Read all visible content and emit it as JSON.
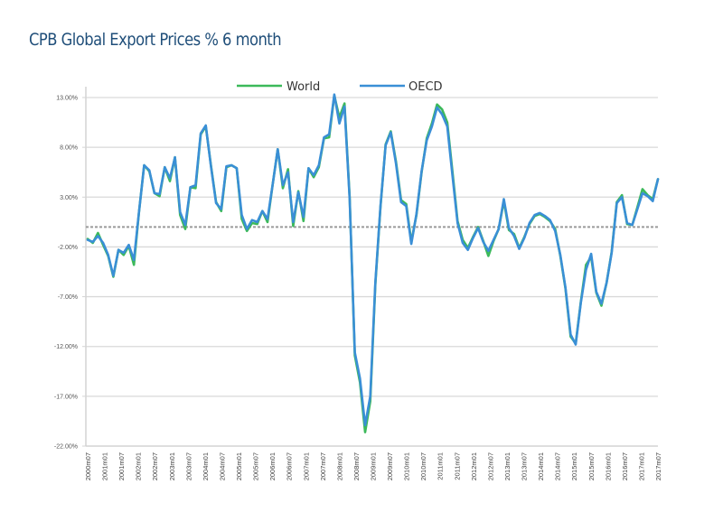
{
  "chart_data": {
    "type": "line",
    "title": "CPB Global Export Prices % 6 month",
    "xlabel": "",
    "ylabel": "",
    "ylim": [
      -22,
      13
    ],
    "yticks": [
      "13.00%",
      "8.00%",
      "3.00%",
      "-2.00%",
      "-7.00%",
      "-12.00%",
      "-17.00%",
      "-22.00%"
    ],
    "ytick_values": [
      13,
      8,
      3,
      -2,
      -7,
      -12,
      -17,
      -22
    ],
    "xticks": [
      "2000m07",
      "2001m01",
      "2001m07",
      "2002m01",
      "2002m07",
      "2003m01",
      "2003m07",
      "2004m01",
      "2004m07",
      "2005m01",
      "2005m07",
      "2006m01",
      "2006m07",
      "2007m01",
      "2007m07",
      "2008m01",
      "2008m07",
      "2009m01",
      "2009m07",
      "2010m01",
      "2010m07",
      "2011m01",
      "2011m07",
      "2012m01",
      "2012m07",
      "2013m01",
      "2013m07",
      "2014m01",
      "2014m07",
      "2015m01",
      "2015m07",
      "2016m01",
      "2016m07",
      "2017m01",
      "2017m07"
    ],
    "grid": true,
    "zero_line": "dashed",
    "legend": {
      "placement": "top-center",
      "entries": [
        "World",
        "OECD"
      ]
    },
    "colors": {
      "World": "#3cb95a",
      "OECD": "#3a8fd6"
    },
    "x_start": "2000m07",
    "x_step": "3 months",
    "series": [
      {
        "name": "World",
        "values": [
          -1.2,
          -1.6,
          -0.6,
          -1.8,
          -2.9,
          -5.0,
          -2.3,
          -2.8,
          -1.9,
          -3.8,
          1.5,
          6.2,
          5.6,
          3.4,
          3.1,
          6.0,
          4.6,
          7.0,
          1.2,
          -0.2,
          4.0,
          3.9,
          9.3,
          10.1,
          6.2,
          2.5,
          1.6,
          6.0,
          6.2,
          5.9,
          0.8,
          -0.4,
          0.4,
          0.3,
          1.6,
          0.5,
          4.2,
          7.8,
          3.9,
          5.8,
          0.1,
          3.6,
          0.6,
          5.9,
          5.0,
          6.0,
          8.9,
          9.0,
          13.2,
          11.0,
          12.4,
          3.0,
          -12.9,
          -15.6,
          -20.6,
          -17.5,
          -5.8,
          2.0,
          8.3,
          9.6,
          6.6,
          2.7,
          2.3,
          -1.5,
          1.2,
          5.5,
          8.9,
          10.4,
          12.3,
          11.8,
          10.5,
          5.6,
          0.6,
          -1.3,
          -2.1,
          -1.0,
          0.0,
          -1.4,
          -2.9,
          -1.4,
          -0.2,
          2.6,
          -0.3,
          -0.7,
          -2.1,
          -1.0,
          0.3,
          1.1,
          1.3,
          1.0,
          0.6,
          -0.2,
          -2.9,
          -6.2,
          -11.0,
          -11.7,
          -7.5,
          -3.8,
          -3.0,
          -6.6,
          -7.9,
          -5.6,
          -2.5,
          2.5,
          3.2,
          0.3,
          0.2,
          2.0,
          3.8,
          3.2,
          2.8,
          4.8
        ]
      },
      {
        "name": "OECD",
        "values": [
          -1.3,
          -1.5,
          -0.9,
          -1.6,
          -2.8,
          -4.9,
          -2.3,
          -2.6,
          -1.8,
          -3.3,
          1.5,
          6.2,
          5.7,
          3.4,
          3.3,
          6.0,
          4.9,
          7.0,
          1.5,
          0.2,
          4.0,
          4.2,
          9.4,
          10.2,
          6.1,
          2.4,
          1.8,
          6.1,
          6.2,
          5.9,
          1.2,
          -0.2,
          0.7,
          0.5,
          1.6,
          0.8,
          4.2,
          7.8,
          4.2,
          5.5,
          0.5,
          3.5,
          1.0,
          5.9,
          5.2,
          6.2,
          9.0,
          9.3,
          13.3,
          10.4,
          12.1,
          2.8,
          -12.6,
          -15.2,
          -19.9,
          -17.0,
          -5.6,
          2.1,
          8.2,
          9.5,
          6.4,
          2.5,
          2.1,
          -1.7,
          1.3,
          5.6,
          8.7,
          10.1,
          12.0,
          11.3,
          10.1,
          5.2,
          0.4,
          -1.6,
          -2.3,
          -1.1,
          -0.1,
          -1.5,
          -2.4,
          -1.3,
          -0.2,
          2.8,
          -0.1,
          -0.9,
          -2.2,
          -1.1,
          0.4,
          1.2,
          1.4,
          1.1,
          0.7,
          -0.4,
          -2.8,
          -6.1,
          -10.8,
          -11.8,
          -7.6,
          -4.3,
          -2.7,
          -6.5,
          -7.7,
          -5.6,
          -2.6,
          2.4,
          3.0,
          0.4,
          0.2,
          1.8,
          3.4,
          3.1,
          2.6,
          4.8
        ]
      }
    ]
  }
}
